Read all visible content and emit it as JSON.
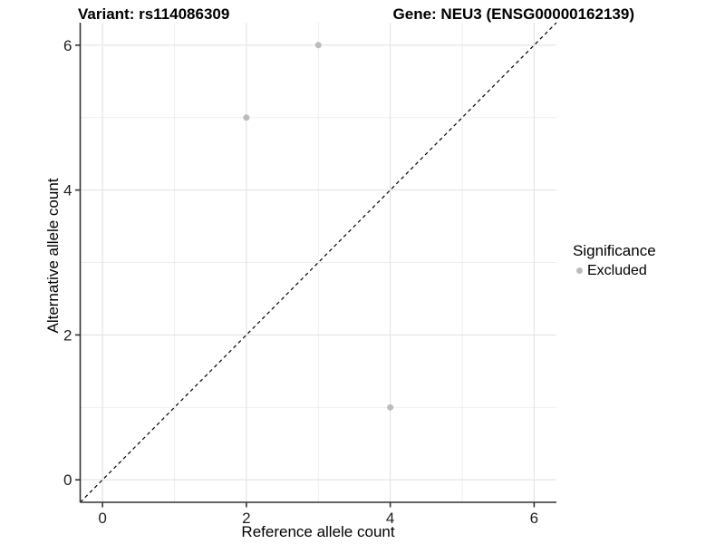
{
  "chart_data": {
    "type": "scatter",
    "titles": [
      "Variant: rs114086309",
      "Gene: NEU3 (ENSG00000162139)"
    ],
    "xlabel": "Reference allele count",
    "ylabel": "Alternative allele count",
    "x_ticks": [
      0,
      2,
      4,
      6
    ],
    "y_ticks": [
      0,
      2,
      4,
      6
    ],
    "x_minor_ticks": [
      1,
      3,
      5
    ],
    "y_minor_ticks": [
      1,
      3,
      5
    ],
    "xlim": [
      -0.31,
      6.31
    ],
    "ylim": [
      -0.31,
      6.31
    ],
    "grid": "major+minor",
    "legend_position": "right",
    "legend_title": "Significance",
    "series": [
      {
        "name": "Excluded",
        "color": "#bcbcbc",
        "points": [
          {
            "x": 2,
            "y": 5
          },
          {
            "x": 3,
            "y": 6
          },
          {
            "x": 4,
            "y": 1
          }
        ]
      }
    ],
    "reference_line": {
      "type": "identity y=x",
      "style": "dashed",
      "color": "#000000"
    }
  },
  "style": {
    "axis_color": "#333333",
    "grid_major_color": "#e3e3e3",
    "grid_minor_color": "#ededed",
    "tick_label_color": "#1f1f1f",
    "background": "#ffffff"
  }
}
